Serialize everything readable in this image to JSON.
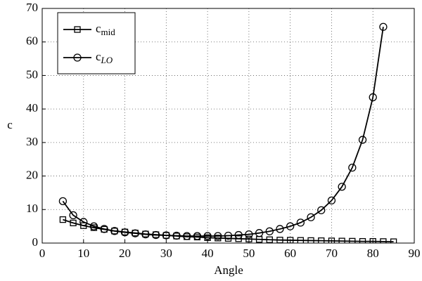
{
  "chart_data": {
    "type": "line",
    "x_label": "Angle",
    "y_label": "c",
    "xlim": [
      0,
      90
    ],
    "xticks": [
      0,
      10,
      20,
      30,
      40,
      50,
      60,
      70,
      80,
      90
    ],
    "ylim": [
      0,
      70
    ],
    "yticks": [
      0,
      10,
      20,
      30,
      40,
      50,
      60,
      70
    ],
    "grid": true,
    "legend": "upper-left",
    "series": [
      {
        "name": "c_mid",
        "color": "#000000",
        "marker": "square",
        "x": [
          5,
          7.5,
          10,
          12.5,
          15,
          17.5,
          20,
          22.5,
          25,
          27.5,
          30,
          32.5,
          35,
          37.5,
          40,
          42.5,
          45,
          47.5,
          50,
          52.5,
          55,
          57.5,
          60,
          62.5,
          65,
          67.5,
          70,
          72.5,
          75,
          77.5,
          80,
          82.5,
          85
        ],
        "values": [
          7,
          6,
          5.2,
          4.6,
          4.1,
          3.6,
          3.3,
          3.0,
          2.7,
          2.5,
          2.3,
          2.1,
          1.9,
          1.8,
          1.6,
          1.5,
          1.4,
          1.3,
          1.2,
          1.1,
          1.0,
          0.9,
          0.85,
          0.8,
          0.75,
          0.7,
          0.65,
          0.6,
          0.55,
          0.5,
          0.5,
          0.45,
          0.4
        ]
      },
      {
        "name": "c_LO",
        "color": "#000000",
        "marker": "circle",
        "x": [
          5,
          7.5,
          10,
          12.5,
          15,
          17.5,
          20,
          22.5,
          25,
          27.5,
          30,
          32.5,
          35,
          37.5,
          40,
          42.5,
          45,
          47.5,
          50,
          52.5,
          55,
          57.5,
          60,
          62.5,
          65,
          67.5,
          70,
          72.5,
          75,
          77.5,
          80,
          82.5
        ],
        "values": [
          12.5,
          8.3,
          6.3,
          5,
          4.2,
          3.6,
          3.2,
          2.9,
          2.6,
          2.4,
          2.3,
          2.2,
          2.1,
          2.1,
          2.1,
          2.1,
          2.2,
          2.4,
          2.6,
          3.0,
          3.5,
          4.2,
          5.0,
          6.1,
          7.7,
          9.8,
          12.7,
          16.8,
          22.5,
          30.8,
          43.5,
          64.5
        ]
      }
    ]
  }
}
